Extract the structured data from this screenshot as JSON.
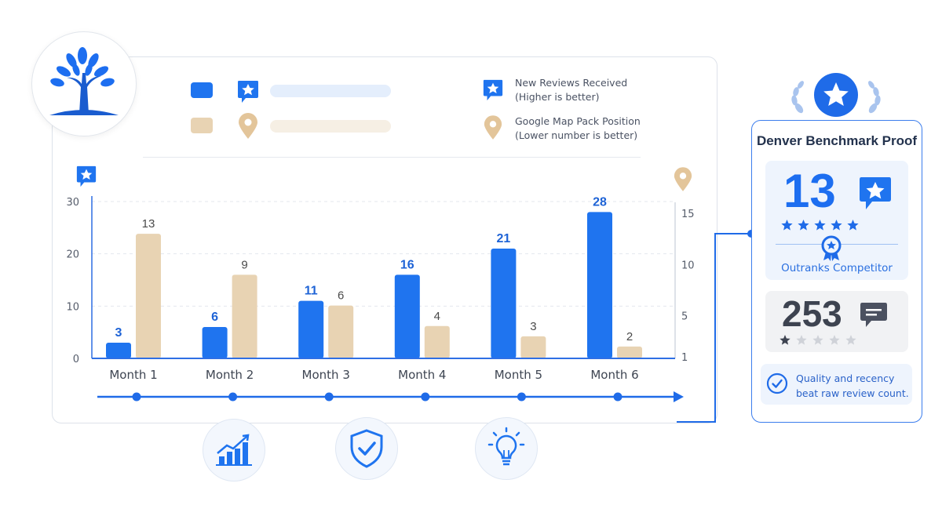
{
  "legend": {
    "reviews": {
      "title": "New Reviews Received",
      "note": "(Higher is better)"
    },
    "position": {
      "title": "Google Map Pack Position",
      "note": "(Lower number is better)"
    }
  },
  "colors": {
    "reviews": "#1f74ef",
    "position": "#e8d3b3",
    "axis": "#2f6fe4",
    "reviews_label": "#1e63d6",
    "position_label": "#4a4a4a",
    "reviews_legend_line": "#e4eefc",
    "position_legend_line": "#f6efe4"
  },
  "chart_data": {
    "type": "bar",
    "categories": [
      "Month 1",
      "Month 2",
      "Month 3",
      "Month 4",
      "Month 5",
      "Month 6"
    ],
    "series": [
      {
        "name": "New Reviews Received",
        "axis": "left",
        "values": [
          3,
          6,
          11,
          16,
          21,
          28
        ]
      },
      {
        "name": "Google Map Pack Position",
        "axis": "right",
        "values": [
          13,
          9,
          6,
          4,
          3,
          2
        ]
      }
    ],
    "left_axis": {
      "ticks": [
        0,
        10,
        20,
        30
      ],
      "range": [
        0,
        30
      ]
    },
    "right_axis": {
      "ticks": [
        1,
        5,
        10,
        15
      ],
      "range": [
        1,
        15
      ]
    },
    "grid": true,
    "legend_position": "top"
  },
  "benchmark": {
    "title": "Denver Benchmark Proof",
    "highlight_value": "13",
    "highlight_stars": 5,
    "highlight_caption": "Outranks Competitor",
    "compare_value": "253",
    "compare_stars": 1,
    "star_total": 5,
    "note": "Quality and recency beat raw review count."
  },
  "icons": {
    "logo": "tree-icon",
    "reviews": "star-chat-icon",
    "position": "map-pin-icon",
    "growth": "growth-chart-icon",
    "security": "shield-check-icon",
    "insight": "lightbulb-icon",
    "badge": "laurel-star-icon",
    "ribbon": "award-ribbon-icon",
    "comment": "comment-icon",
    "check": "check-circle-icon"
  }
}
